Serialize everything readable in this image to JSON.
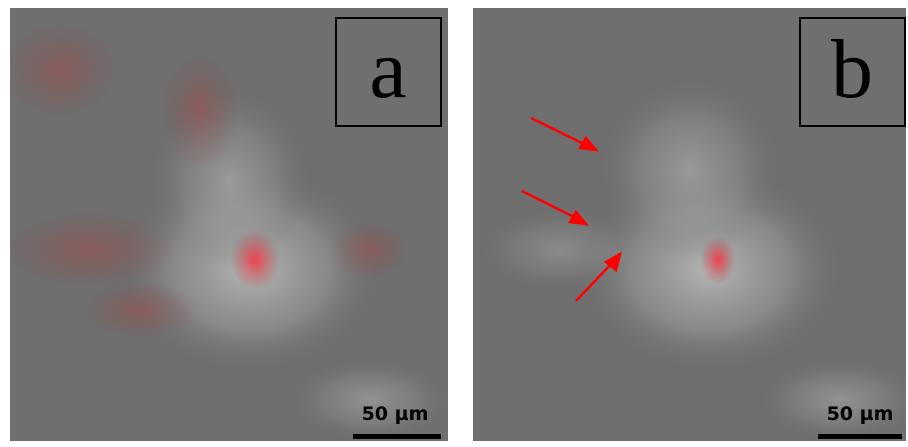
{
  "panels": [
    {
      "label": "a",
      "scale_bar": "50 µm"
    },
    {
      "label": "b",
      "scale_bar": "50 µm"
    }
  ]
}
